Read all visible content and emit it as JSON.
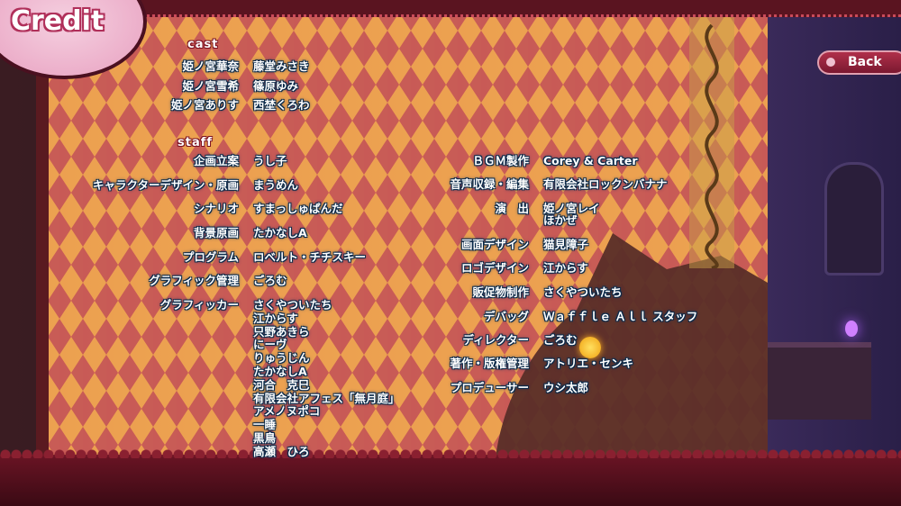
{
  "title": "Credit",
  "back_label": "Back",
  "cast": {
    "header": "cast",
    "rows": [
      {
        "role": "姫ノ宮華奈",
        "name": "藤堂みさき"
      },
      {
        "role": "姫ノ宮雪希",
        "name": "篠原ゆみ"
      },
      {
        "role": "姫ノ宮ありす",
        "name": "西埜くろわ"
      }
    ]
  },
  "staff": {
    "header": "staff",
    "left": [
      {
        "role": "企画立案",
        "names": [
          "うし子"
        ]
      },
      {
        "role": "キャラクターデザイン・原画",
        "names": [
          "まうめん"
        ]
      },
      {
        "role": "シナリオ",
        "names": [
          "すまっしゅぱんだ"
        ]
      },
      {
        "role": "背景原画",
        "names": [
          "たかなしA"
        ]
      },
      {
        "role": "プログラム",
        "names": [
          "ロベルト・チチスキー"
        ]
      },
      {
        "role": "グラフィック管理",
        "names": [
          "ごろむ"
        ]
      },
      {
        "role": "グラフィッカー",
        "names": [
          "さくやついたち",
          "江からす",
          "只野あきら",
          "にーヴ",
          "りゅうじん",
          "たかなしA",
          "河合　克巳",
          "有限会社アフェス「無月庭」",
          "アメノヌポコ",
          "一睡",
          "黒鳥",
          "高瀬　ひろ"
        ]
      }
    ],
    "right": [
      {
        "role": "ＢＧＭ製作",
        "names": [
          "Corey & Carter"
        ]
      },
      {
        "role": "音声収録・編集",
        "names": [
          "有限会社ロックンバナナ"
        ]
      },
      {
        "role": "演　出",
        "names": [
          "姫ノ宮レイ",
          "ほかぜ"
        ]
      },
      {
        "role": "画面デザイン",
        "names": [
          "猫見障子"
        ]
      },
      {
        "role": "ロゴデザイン",
        "names": [
          "江からす"
        ]
      },
      {
        "role": "販促物制作",
        "names": [
          "さくやついたち"
        ]
      },
      {
        "role": "デバッグ",
        "names": [
          "Ｗａｆｆｌｅ Ａｌｌ スタッフ"
        ]
      },
      {
        "role": "ディレクター",
        "names": [
          "ごろむ"
        ]
      },
      {
        "role": "著作・版権管理",
        "names": [
          "アトリエ・センキ"
        ]
      },
      {
        "role": "プロデューサー",
        "names": [
          "ウシ太郎"
        ]
      }
    ]
  },
  "colors": {
    "accent": "#b0304a",
    "text_outline": "#0a2a4a"
  }
}
